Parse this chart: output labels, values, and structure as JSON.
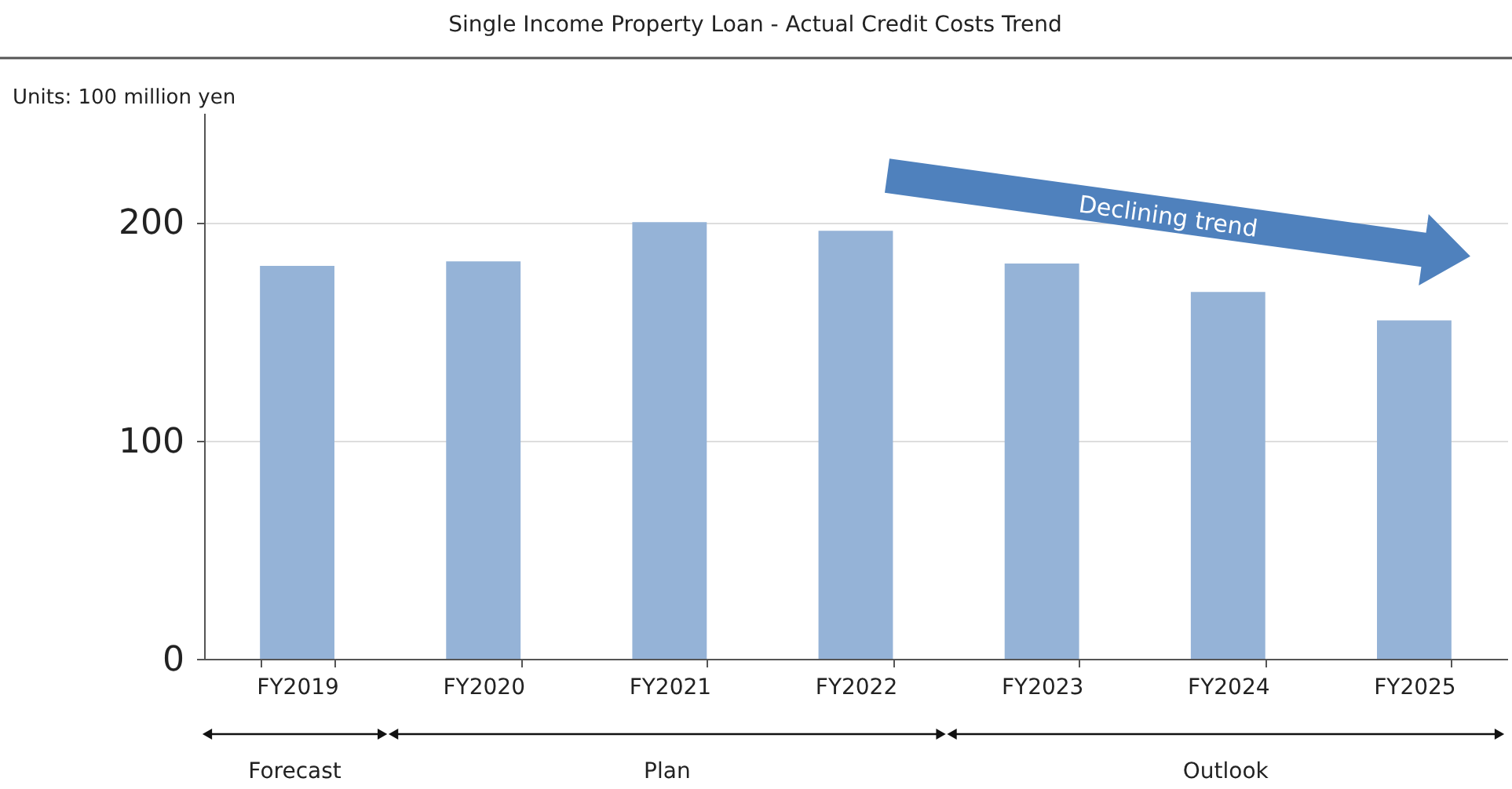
{
  "chart_data": {
    "type": "bar",
    "title": "Single Income Property Loan - Actual Credit Costs Trend",
    "categories": [
      "FY2019",
      "FY2020",
      "FY2021",
      "FY2022",
      "FY2023",
      "FY2024",
      "FY2025"
    ],
    "values": [
      180,
      182,
      200,
      196,
      181,
      168,
      155
    ],
    "color": "#95b3d7",
    "ylim": [
      0,
      250
    ],
    "yticks": [
      0,
      100,
      200
    ],
    "grid": "y",
    "annotations": [
      "Units: 100 million yen",
      "Declining trend",
      "Forecast",
      "Plan",
      "Outlook"
    ]
  }
}
